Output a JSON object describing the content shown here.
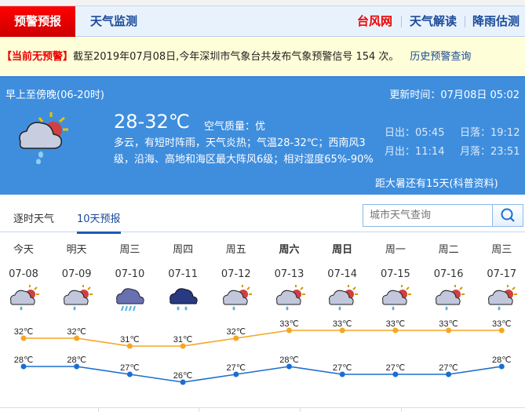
{
  "nav": {
    "active": "预警预报",
    "monitor": "天气监测",
    "links": [
      "台风网",
      "天气解读",
      "降雨估测"
    ],
    "accent": "#ee0000"
  },
  "warning": {
    "status": "【当前无预警】",
    "text": "截至2019年07月08日,今年深圳市气象台共发布气象预警信号 154 次。",
    "history": "历史预警查询"
  },
  "today": {
    "period": "早上至傍晚(06-20时)",
    "updated": "更新时间：07月08日 05:02",
    "temp": "28-32℃",
    "aqi_label": "空气质量：",
    "aqi": "优",
    "desc": "多云，有短时阵雨，天气炎热；气温28-32℃；西南风3级，沿海、高地和海区最大阵风6级；相对湿度65%-90%",
    "sunrise": "日出：05:45",
    "sunset": "日落：19:12",
    "moonrise": "月出：11:14",
    "moonset": "月落：23:51",
    "solar_term": "距大暑还有15天(科普资料)",
    "icon": "cloudy-shower-icon"
  },
  "tabs": [
    "逐时天气",
    "10天预报"
  ],
  "search": {
    "placeholder": "城市天气查询"
  },
  "forecast": [
    {
      "weekday": "今天",
      "date": "07-08",
      "icon": "cloudy-shower",
      "high": "32℃",
      "low": "28℃"
    },
    {
      "weekday": "明天",
      "date": "07-09",
      "icon": "cloudy-shower",
      "high": "32℃",
      "low": "28℃"
    },
    {
      "weekday": "周三",
      "date": "07-10",
      "icon": "heavy-rain",
      "high": "31℃",
      "low": "27℃"
    },
    {
      "weekday": "周四",
      "date": "07-11",
      "icon": "rain",
      "high": "31℃",
      "low": "26℃"
    },
    {
      "weekday": "周五",
      "date": "07-12",
      "icon": "cloudy-shower",
      "high": "32℃",
      "low": "27℃"
    },
    {
      "weekday": "周六",
      "date": "07-13",
      "icon": "cloudy-shower",
      "high": "33℃",
      "low": "28℃",
      "bold": true
    },
    {
      "weekday": "周日",
      "date": "07-14",
      "icon": "cloudy-shower",
      "high": "33℃",
      "low": "27℃",
      "bold": true
    },
    {
      "weekday": "周一",
      "date": "07-15",
      "icon": "cloudy-shower",
      "high": "33℃",
      "low": "27℃"
    },
    {
      "weekday": "周二",
      "date": "07-16",
      "icon": "cloudy-shower",
      "high": "33℃",
      "low": "27℃"
    },
    {
      "weekday": "周三",
      "date": "07-17",
      "icon": "cloudy-shower",
      "high": "33℃",
      "low": "28℃"
    }
  ],
  "chart_data": {
    "type": "line",
    "categories": [
      "07-08",
      "07-09",
      "07-10",
      "07-11",
      "07-12",
      "07-13",
      "07-14",
      "07-15",
      "07-16",
      "07-17"
    ],
    "series": [
      {
        "values": [
          32,
          32,
          31,
          31,
          32,
          33,
          33,
          33,
          33,
          33
        ],
        "color": "#f5a623"
      },
      {
        "values": [
          28,
          28,
          27,
          26,
          27,
          28,
          27,
          27,
          27,
          28
        ],
        "color": "#1a6fd0"
      }
    ],
    "unit": "℃"
  }
}
